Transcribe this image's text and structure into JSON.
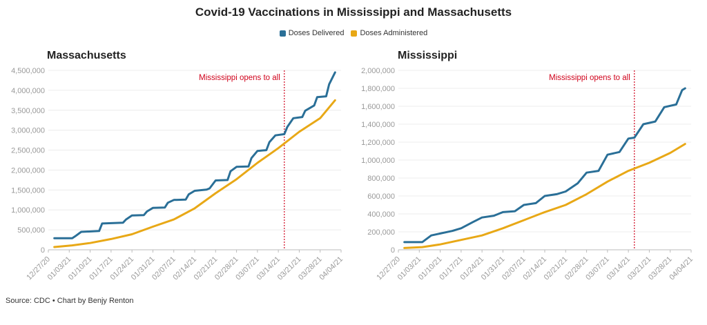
{
  "title": "Covid-19 Vaccinations in Mississippi and Massachusetts",
  "legend": [
    {
      "label": "Doses Delivered",
      "color": "#2a6f97"
    },
    {
      "label": "Doses Administered",
      "color": "#e8a816"
    }
  ],
  "source": "Source: CDC • Chart by Benjy Renton",
  "chart_data": [
    {
      "type": "line",
      "title": "Massachusetts",
      "x_ticks": [
        "12/27/20",
        "01/03/21",
        "01/10/21",
        "01/17/21",
        "01/24/21",
        "01/31/21",
        "02/07/21",
        "02/14/21",
        "02/21/21",
        "02/28/21",
        "03/07/21",
        "03/14/21",
        "03/21/21",
        "03/28/21",
        "04/04/21"
      ],
      "y_ticks": [
        "0",
        "500,000",
        "1,000,000",
        "1,500,000",
        "2,000,000",
        "2,500,000",
        "3,000,000",
        "3,500,000",
        "4,000,000",
        "4,500,000"
      ],
      "ylim": [
        0,
        4500000
      ],
      "annotation": {
        "label": "Mississippi opens to all",
        "x": "03/16/21"
      },
      "series": [
        {
          "name": "Doses Delivered",
          "color": "#2a6f97",
          "x": [
            "12/29/20",
            "01/04/21",
            "01/05/21",
            "01/07/21",
            "01/13/21",
            "01/14/21",
            "01/21/21",
            "01/22/21",
            "01/24/21",
            "01/28/21",
            "01/29/21",
            "01/31/21",
            "02/04/21",
            "02/05/21",
            "02/07/21",
            "02/11/21",
            "02/12/21",
            "02/14/21",
            "02/18/21",
            "02/19/21",
            "02/21/21",
            "02/25/21",
            "02/26/21",
            "02/28/21",
            "03/04/21",
            "03/05/21",
            "03/07/21",
            "03/10/21",
            "03/11/21",
            "03/13/21",
            "03/16/21",
            "03/17/21",
            "03/19/21",
            "03/22/21",
            "03/23/21",
            "03/26/21",
            "03/27/21",
            "03/30/21",
            "03/31/21",
            "04/02/21"
          ],
          "values": [
            290000,
            290000,
            340000,
            450000,
            470000,
            660000,
            680000,
            760000,
            860000,
            870000,
            960000,
            1050000,
            1060000,
            1180000,
            1250000,
            1260000,
            1390000,
            1480000,
            1510000,
            1540000,
            1740000,
            1750000,
            1970000,
            2080000,
            2090000,
            2300000,
            2480000,
            2500000,
            2700000,
            2870000,
            2900000,
            3080000,
            3300000,
            3330000,
            3490000,
            3620000,
            3830000,
            3850000,
            4150000,
            4450000
          ]
        },
        {
          "name": "Doses Administered",
          "color": "#e8a816",
          "x": [
            "12/29/20",
            "01/04/21",
            "01/10/21",
            "01/17/21",
            "01/24/21",
            "01/31/21",
            "02/07/21",
            "02/14/21",
            "02/21/21",
            "02/28/21",
            "03/07/21",
            "03/14/21",
            "03/21/21",
            "03/28/21",
            "04/02/21"
          ],
          "values": [
            70000,
            110000,
            170000,
            270000,
            390000,
            580000,
            760000,
            1040000,
            1420000,
            1770000,
            2180000,
            2550000,
            2960000,
            3300000,
            3750000
          ]
        }
      ]
    },
    {
      "type": "line",
      "title": "Mississippi",
      "x_ticks": [
        "12/27/20",
        "01/03/21",
        "01/10/21",
        "01/17/21",
        "01/24/21",
        "01/31/21",
        "02/07/21",
        "02/14/21",
        "02/21/21",
        "02/28/21",
        "03/07/21",
        "03/14/21",
        "03/21/21",
        "03/28/21",
        "04/04/21"
      ],
      "y_ticks": [
        "0",
        "200,000",
        "400,000",
        "600,000",
        "800,000",
        "1,000,000",
        "1,200,000",
        "1,400,000",
        "1,600,000",
        "1,800,000",
        "2,000,000"
      ],
      "ylim": [
        0,
        2000000
      ],
      "annotation": {
        "label": "Mississippi opens to all",
        "x": "03/16/21"
      },
      "series": [
        {
          "name": "Doses Delivered",
          "color": "#2a6f97",
          "x": [
            "12/29/20",
            "01/04/21",
            "01/05/21",
            "01/07/21",
            "01/14/21",
            "01/17/21",
            "01/21/21",
            "01/24/21",
            "01/28/21",
            "01/31/21",
            "02/04/21",
            "02/07/21",
            "02/11/21",
            "02/14/21",
            "02/18/21",
            "02/21/21",
            "02/25/21",
            "02/28/21",
            "03/04/21",
            "03/07/21",
            "03/11/21",
            "03/14/21",
            "03/16/21",
            "03/19/21",
            "03/23/21",
            "03/26/21",
            "03/30/21",
            "04/01/21",
            "04/02/21"
          ],
          "values": [
            85000,
            85000,
            110000,
            160000,
            210000,
            240000,
            310000,
            360000,
            380000,
            420000,
            430000,
            500000,
            520000,
            600000,
            620000,
            650000,
            740000,
            860000,
            880000,
            1060000,
            1090000,
            1240000,
            1250000,
            1400000,
            1430000,
            1590000,
            1620000,
            1780000,
            1800000
          ]
        },
        {
          "name": "Doses Administered",
          "color": "#e8a816",
          "x": [
            "12/29/20",
            "01/04/21",
            "01/10/21",
            "01/17/21",
            "01/24/21",
            "01/31/21",
            "02/07/21",
            "02/14/21",
            "02/21/21",
            "02/28/21",
            "03/07/21",
            "03/14/21",
            "03/21/21",
            "03/28/21",
            "04/02/21"
          ],
          "values": [
            20000,
            30000,
            60000,
            110000,
            160000,
            240000,
            330000,
            420000,
            500000,
            620000,
            760000,
            880000,
            970000,
            1080000,
            1180000
          ]
        }
      ]
    }
  ]
}
